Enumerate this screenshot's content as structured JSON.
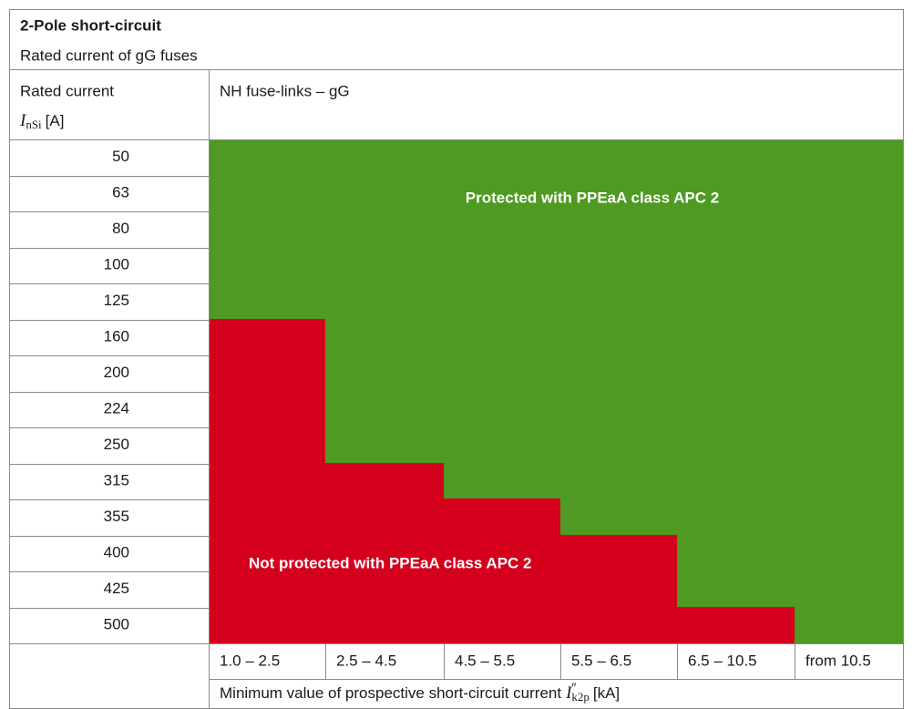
{
  "header": {
    "title": "2-Pole short-circuit",
    "subtitle": "Rated current of gG fuses"
  },
  "table": {
    "row_header": {
      "label": "Rated current",
      "symbol": "I",
      "subscript": "nSi",
      "unit": "[A]"
    },
    "column_header": "NH fuse-links – gG",
    "rated_currents": [
      "50",
      "63",
      "80",
      "100",
      "125",
      "160",
      "200",
      "224",
      "250",
      "315",
      "355",
      "400",
      "425",
      "500"
    ],
    "current_ranges": [
      "1.0 – 2.5",
      "2.5 – 4.5",
      "4.5 – 5.5",
      "5.5 – 6.5",
      "6.5 – 10.5",
      "from 10.5"
    ],
    "axis_label": {
      "text": "Minimum value of prospective short-circuit current",
      "symbol": "I",
      "superscript": "″",
      "subscript": "k2p",
      "unit": "[kA]"
    }
  },
  "regions": {
    "protected": "Protected with PPEaA class APC 2",
    "not_protected": "Not protected with PPEaA class APC 2"
  }
}
